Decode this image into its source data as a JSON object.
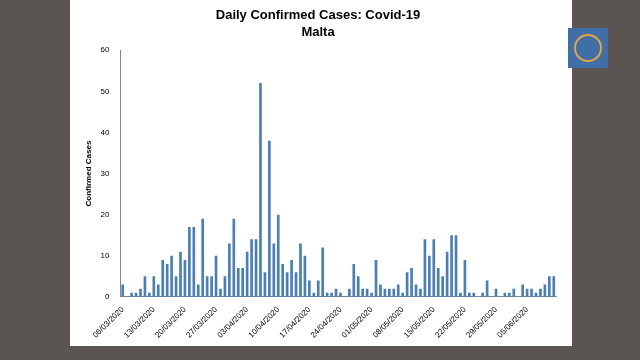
{
  "chart_data": {
    "type": "bar",
    "title": "Daily Confirmed Cases: Covid-19",
    "subtitle": "Malta",
    "ylabel": "Confirmed Cases",
    "categories": [
      "06/03/2020",
      null,
      null,
      null,
      null,
      null,
      null,
      "13/03/2020",
      null,
      null,
      null,
      null,
      null,
      null,
      "20/03/2020",
      null,
      null,
      null,
      null,
      null,
      null,
      "27/03/2020",
      null,
      null,
      null,
      null,
      null,
      null,
      "03/04/2020",
      null,
      null,
      null,
      null,
      null,
      null,
      "10/04/2020",
      null,
      null,
      null,
      null,
      null,
      null,
      "17/04/2020",
      null,
      null,
      null,
      null,
      null,
      null,
      "24/04/2020",
      null,
      null,
      null,
      null,
      null,
      null,
      "01/05/2020",
      null,
      null,
      null,
      null,
      null,
      null,
      "08/05/2020",
      null,
      null,
      null,
      null,
      null,
      null,
      "15/05/2020",
      null,
      null,
      null,
      null,
      null,
      null,
      "22/05/2020",
      null,
      null,
      null,
      null,
      null,
      null,
      "29/05/2020",
      null,
      null,
      null,
      null,
      null,
      null,
      "05/06/2020",
      null,
      null,
      null,
      null,
      null,
      null
    ],
    "values": [
      3,
      0,
      1,
      1,
      2,
      5,
      1,
      5,
      3,
      9,
      8,
      10,
      5,
      11,
      9,
      17,
      17,
      3,
      19,
      5,
      5,
      10,
      2,
      5,
      13,
      19,
      7,
      7,
      11,
      14,
      14,
      52,
      6,
      38,
      13,
      20,
      8,
      6,
      9,
      6,
      13,
      10,
      4,
      1,
      4,
      12,
      1,
      1,
      2,
      1,
      0,
      2,
      8,
      5,
      2,
      2,
      1,
      9,
      3,
      2,
      2,
      2,
      3,
      1,
      6,
      7,
      3,
      2,
      14,
      10,
      14,
      7,
      5,
      11,
      15,
      15,
      1,
      9,
      1,
      1,
      0,
      1,
      4,
      0,
      2,
      0,
      1,
      1,
      2,
      0,
      3,
      2,
      2,
      1,
      2,
      3,
      5,
      5
    ],
    "color": "#4a7ebb",
    "ylim": [
      0,
      60
    ],
    "yticks": [
      0,
      10,
      20,
      30,
      40,
      50,
      60
    ],
    "grid": false
  }
}
